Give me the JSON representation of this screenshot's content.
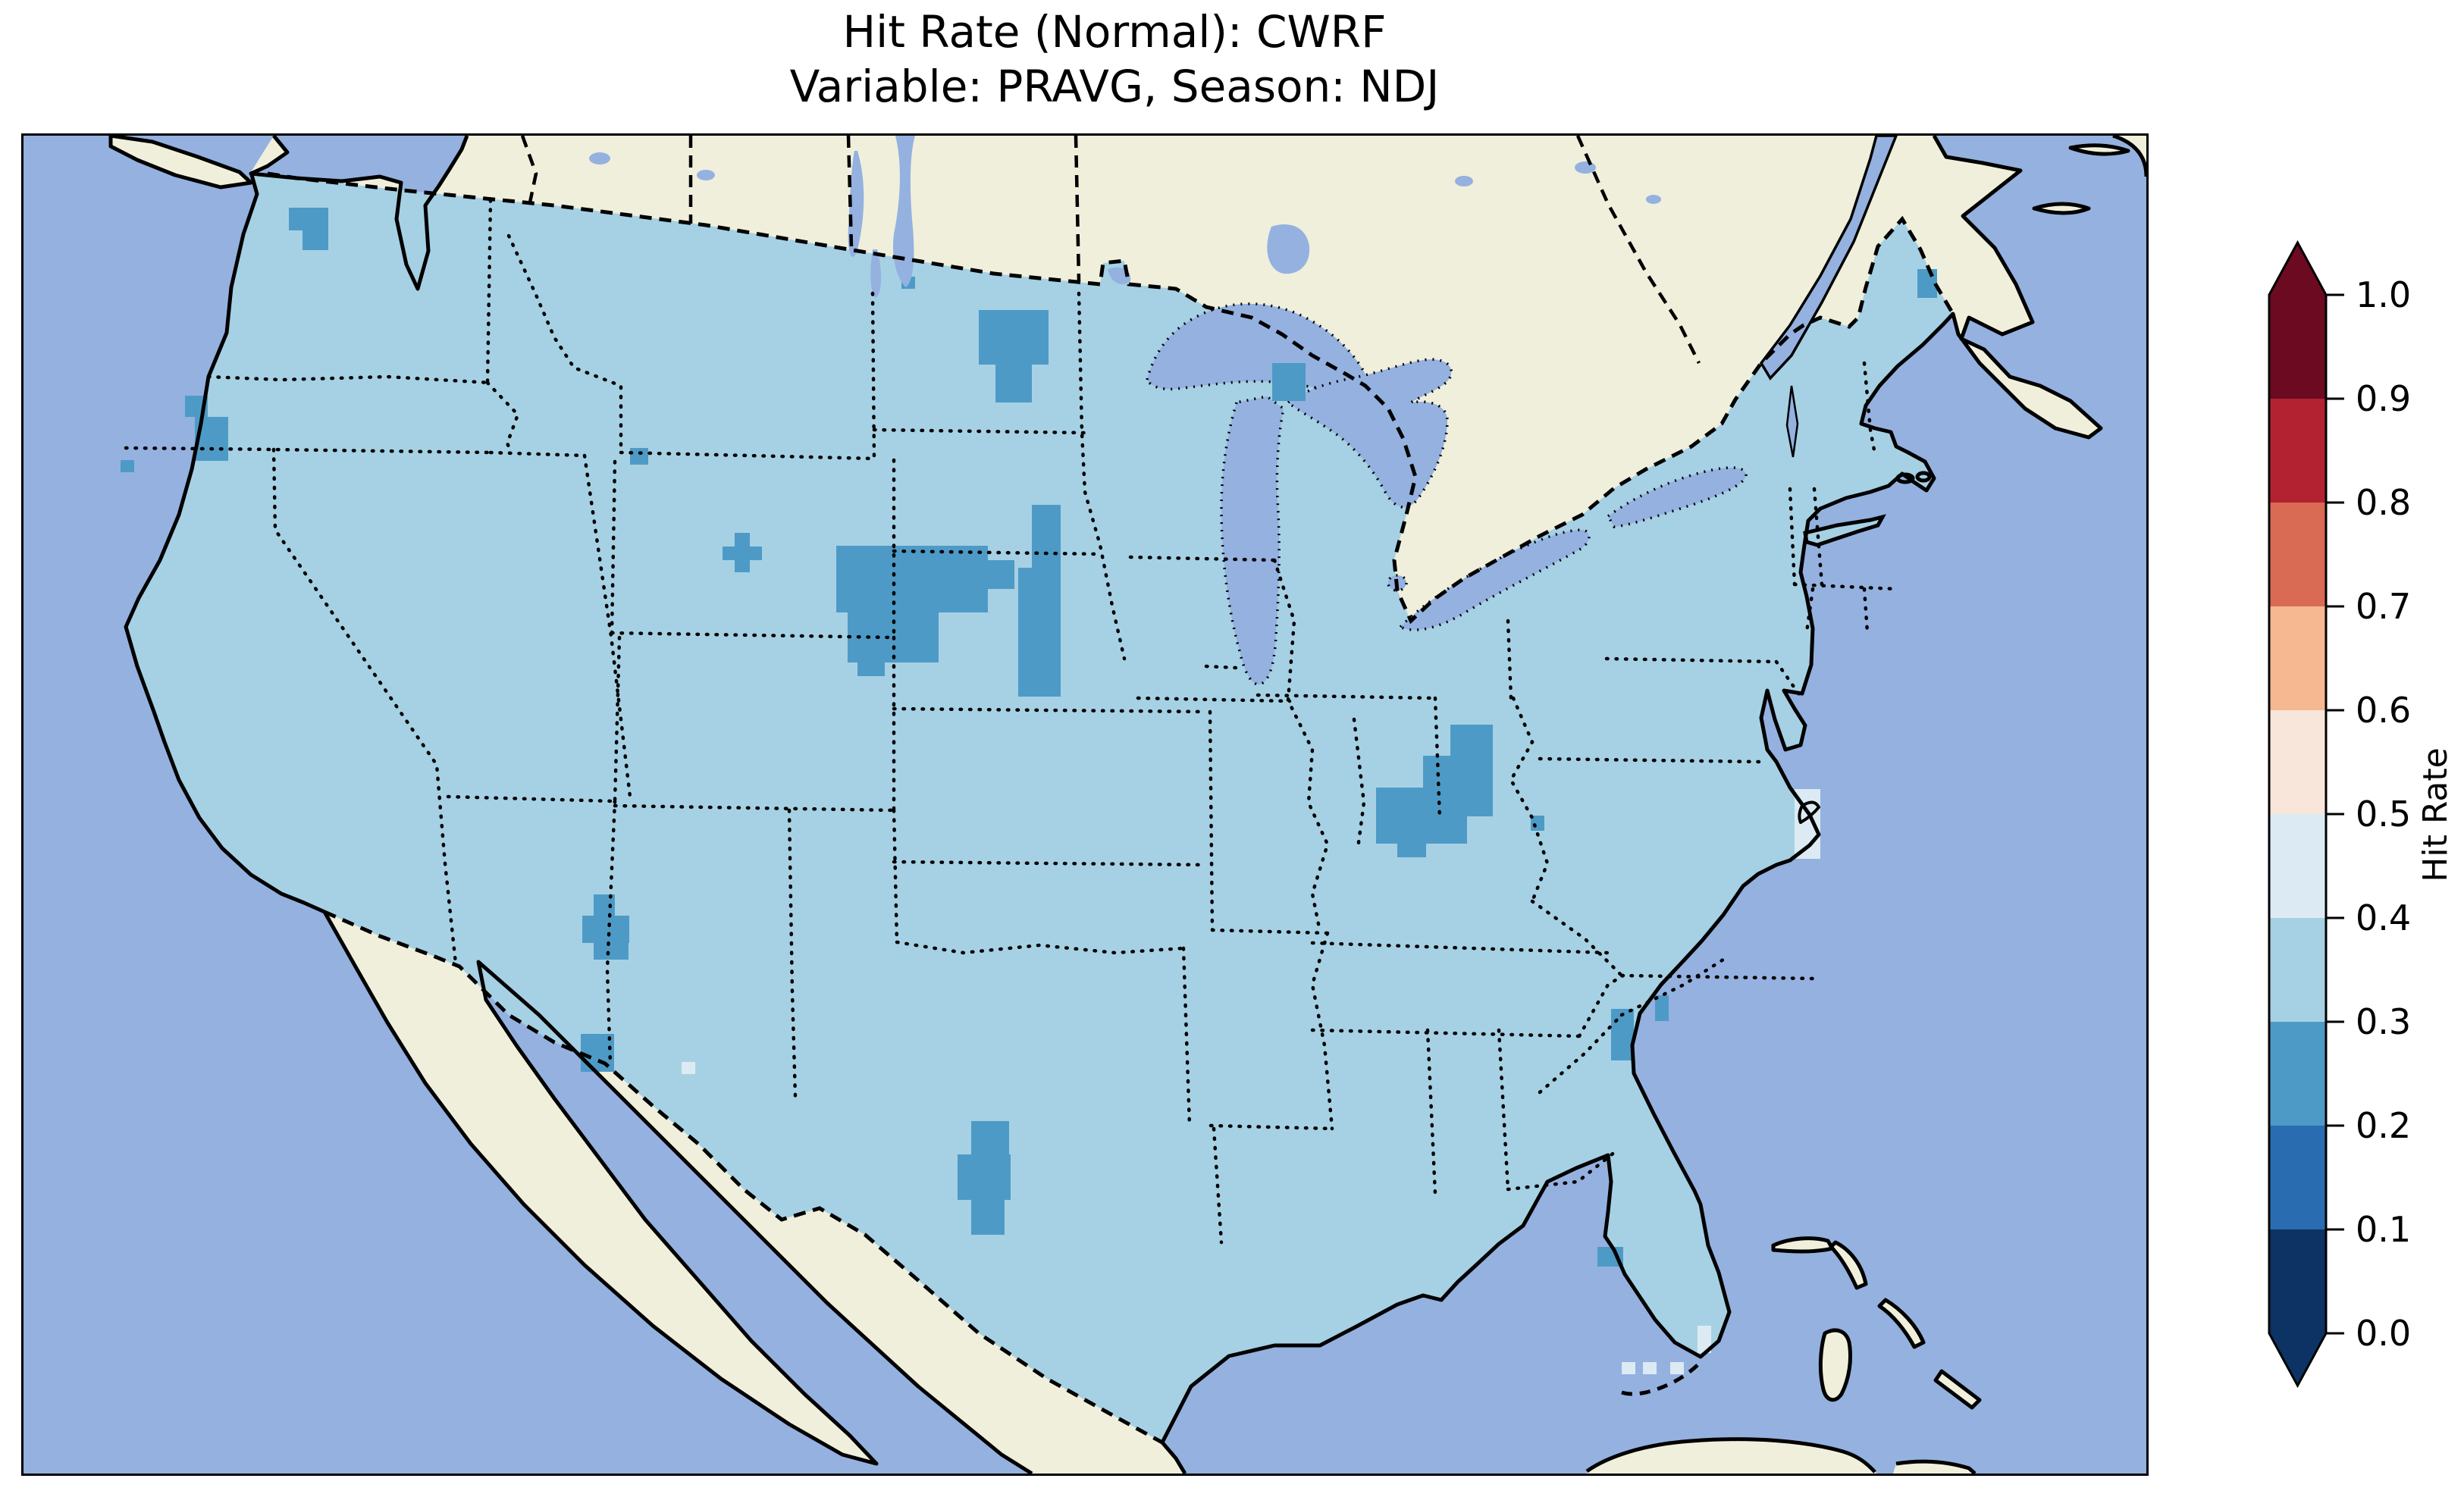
{
  "figure": {
    "title_line1": "Hit Rate (Normal): CWRF",
    "title_line2": "Variable: PRAVG, Season: NDJ",
    "background_color": "#ffffff"
  },
  "map": {
    "region": "Contiguous United States with southern Canada, Mexico, Cuba and Bahamas",
    "frame_color": "#000000",
    "ocean_color": "#94b1e0",
    "lake_color": "#94b1e0",
    "land_color": "#f0efdb",
    "us_grid_base_color": "#a6d1e4",
    "us_grid_base_bin": "0.3-0.4",
    "low_cells_color": "#4e9ac6",
    "low_cells_bin": "0.2-0.3",
    "high_cells_color": "#dcebf3",
    "high_cells_bin": "0.4-0.5",
    "coastline_style": "solid black",
    "national_border_style": "dashed black",
    "state_border_style": "dotted black"
  },
  "colorbar": {
    "label": "Hit Rate",
    "min": 0.0,
    "max": 1.0,
    "tick_step": 0.1,
    "tick_labels": [
      "0.0",
      "0.1",
      "0.2",
      "0.3",
      "0.4",
      "0.5",
      "0.6",
      "0.7",
      "0.8",
      "0.9",
      "1.0"
    ],
    "extend": "both",
    "outline_color": "#000000",
    "segments": [
      {
        "from": 0.0,
        "to": 0.1,
        "color": "#0d3365"
      },
      {
        "from": 0.1,
        "to": 0.2,
        "color": "#2a6cb0"
      },
      {
        "from": 0.2,
        "to": 0.3,
        "color": "#4e9ac6"
      },
      {
        "from": 0.3,
        "to": 0.4,
        "color": "#a6d1e4"
      },
      {
        "from": 0.4,
        "to": 0.5,
        "color": "#dcebf3"
      },
      {
        "from": 0.5,
        "to": 0.6,
        "color": "#f9e6da"
      },
      {
        "from": 0.6,
        "to": 0.7,
        "color": "#f6b890"
      },
      {
        "from": 0.7,
        "to": 0.8,
        "color": "#d96a53"
      },
      {
        "from": 0.8,
        "to": 0.9,
        "color": "#b32230"
      },
      {
        "from": 0.9,
        "to": 1.0,
        "color": "#6c0a21"
      }
    ]
  },
  "chart_data": {
    "type": "heatmap",
    "title": "Hit Rate (Normal): CWRF",
    "subtitle": "Variable: PRAVG, Season: NDJ",
    "metric": "Hit Rate (Normal)",
    "model": "CWRF",
    "variable": "PRAVG",
    "season": "NDJ",
    "region": "Contiguous United States gridded domain",
    "colormap": "RdBu_r, 10 discrete bins 0.0-1.0, pointed extend arrows at both ends",
    "legend_position": "right vertical colorbar labelled Hit Rate",
    "value_summary": {
      "dominant_value_bin": [
        0.3,
        0.4
      ],
      "lower_value_bin": [
        0.2,
        0.3
      ],
      "lower_value_regions": [
        "northeast Washington cluster",
        "central Oregon cells",
        "northern California coast cell",
        "western Montana cell",
        "central North Dakota cluster",
        "western Minnesota border strip",
        "South Dakota plus-shaped cluster",
        "Nebraska Sandhills cluster (largest)",
        "Mackinac / upper Michigan cells",
        "southern Indiana diagonal cluster",
        "upstate South Carolina cell",
        "coastal Georgia cells",
        "Tampa Bay Florida cells",
        "northwest New Mexico cluster",
        "El Paso far-west Texas cells",
        "central Texas cluster",
        "northern Maine border cell"
      ],
      "higher_value_bin": [
        0.4,
        0.5
      ],
      "higher_value_regions": [
        "isolated cell east of El Paso",
        "three cells south of the Florida Keys",
        "cells near Bermuda"
      ]
    }
  }
}
